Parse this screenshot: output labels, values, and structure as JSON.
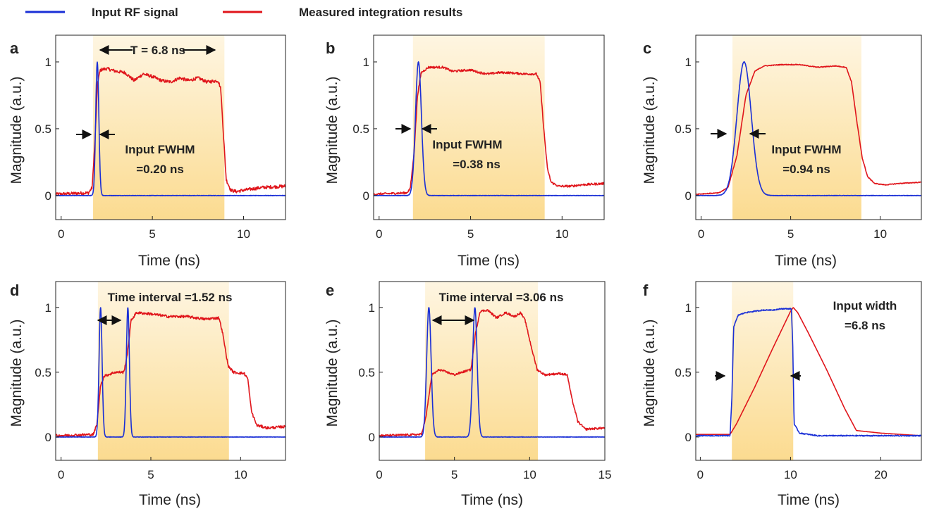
{
  "legend": [
    {
      "label": "Input RF signal",
      "color": "#1a2fd6"
    },
    {
      "label": "Measured integration results",
      "color": "#e0151b"
    }
  ],
  "colors": {
    "input": "#1a2fd6",
    "output": "#e0151b",
    "window": "#fbd98a"
  },
  "chart_data": [
    {
      "id": "a",
      "type": "line",
      "panel_label": "a",
      "xlabel": "Time (ns)",
      "ylabel": "Magnitude (a.u.)",
      "xlim": [
        -0.3,
        12.3
      ],
      "ylim": [
        -0.18,
        1.2
      ],
      "xticks": [
        0,
        5,
        10
      ],
      "xticklabels": [
        "0",
        "5",
        "10"
      ],
      "yticks": [
        0,
        0.5,
        1
      ],
      "yticklabels": [
        "0",
        "0.5",
        "1"
      ],
      "window": [
        1.75,
        8.95
      ],
      "input": {
        "kind": "pulses",
        "centers": [
          1.98
        ],
        "fwhm": 0.2,
        "end": 12.3
      },
      "output": {
        "pts": [
          [
            -0.3,
            0.01
          ],
          [
            1.5,
            0.02
          ],
          [
            1.7,
            0.06
          ],
          [
            1.85,
            0.4
          ],
          [
            2.0,
            0.85
          ],
          [
            2.15,
            0.94
          ],
          [
            2.5,
            0.95
          ],
          [
            3,
            0.93
          ],
          [
            3.5,
            0.92
          ],
          [
            4,
            0.86
          ],
          [
            4.5,
            0.91
          ],
          [
            5,
            0.89
          ],
          [
            5.5,
            0.86
          ],
          [
            6,
            0.85
          ],
          [
            6.5,
            0.88
          ],
          [
            7,
            0.86
          ],
          [
            7.5,
            0.88
          ],
          [
            8,
            0.85
          ],
          [
            8.6,
            0.86
          ],
          [
            8.75,
            0.8
          ],
          [
            8.9,
            0.45
          ],
          [
            9.05,
            0.12
          ],
          [
            9.3,
            0.04
          ],
          [
            9.6,
            0.03
          ],
          [
            10,
            0.04
          ],
          [
            11,
            0.06
          ],
          [
            12.3,
            0.07
          ]
        ],
        "noise": 0.012,
        "ann": [
          "T = 6.8 ns"
        ]
      },
      "annotations": [
        "T = 6.8 ns",
        "Input FWHM",
        "=0.20 ns"
      ]
    },
    {
      "id": "b",
      "type": "line",
      "panel_label": "b",
      "xlabel": "Time (ns)",
      "ylabel": "Magnitude (a.u.)",
      "xlim": [
        -0.3,
        12.3
      ],
      "ylim": [
        -0.18,
        1.2
      ],
      "xticks": [
        0,
        5,
        10
      ],
      "xticklabels": [
        "0",
        "5",
        "10"
      ],
      "yticks": [
        0,
        0.5,
        1
      ],
      "yticklabels": [
        "0",
        "0.5",
        "1"
      ],
      "window": [
        1.85,
        9.05
      ],
      "input": {
        "kind": "pulses",
        "centers": [
          2.15
        ],
        "fwhm": 0.38,
        "end": 12.3
      },
      "output": {
        "pts": [
          [
            -0.3,
            0.01
          ],
          [
            1.5,
            0.02
          ],
          [
            1.7,
            0.05
          ],
          [
            1.9,
            0.3
          ],
          [
            2.1,
            0.75
          ],
          [
            2.3,
            0.92
          ],
          [
            2.7,
            0.96
          ],
          [
            3.5,
            0.96
          ],
          [
            4,
            0.93
          ],
          [
            5,
            0.94
          ],
          [
            5.5,
            0.92
          ],
          [
            6,
            0.91
          ],
          [
            6.5,
            0.92
          ],
          [
            7,
            0.92
          ],
          [
            8,
            0.91
          ],
          [
            8.6,
            0.91
          ],
          [
            8.8,
            0.85
          ],
          [
            9.0,
            0.5
          ],
          [
            9.2,
            0.2
          ],
          [
            9.4,
            0.1
          ],
          [
            9.8,
            0.07
          ],
          [
            10.5,
            0.07
          ],
          [
            11,
            0.08
          ],
          [
            12.3,
            0.09
          ]
        ],
        "noise": 0.008
      },
      "annotations": [
        "Input FWHM",
        "=0.38 ns"
      ]
    },
    {
      "id": "c",
      "type": "line",
      "panel_label": "c",
      "xlabel": "Time (ns)",
      "ylabel": "Magnitude (a.u.)",
      "xlim": [
        -0.3,
        12.3
      ],
      "ylim": [
        -0.18,
        1.2
      ],
      "xticks": [
        0,
        5,
        10
      ],
      "xticklabels": [
        "0",
        "5",
        "10"
      ],
      "yticks": [
        0,
        0.5,
        1
      ],
      "yticklabels": [
        "0",
        "0.5",
        "1"
      ],
      "window": [
        1.75,
        8.95
      ],
      "input": {
        "kind": "pulses",
        "centers": [
          2.4
        ],
        "fwhm": 0.94,
        "end": 12.3
      },
      "output": {
        "pts": [
          [
            -0.3,
            0.01
          ],
          [
            1.0,
            0.02
          ],
          [
            1.5,
            0.06
          ],
          [
            2,
            0.3
          ],
          [
            2.5,
            0.75
          ],
          [
            3,
            0.93
          ],
          [
            3.5,
            0.97
          ],
          [
            4.5,
            0.98
          ],
          [
            5.5,
            0.98
          ],
          [
            6.5,
            0.96
          ],
          [
            7.5,
            0.97
          ],
          [
            8.1,
            0.96
          ],
          [
            8.4,
            0.85
          ],
          [
            8.7,
            0.55
          ],
          [
            9.0,
            0.28
          ],
          [
            9.3,
            0.14
          ],
          [
            9.7,
            0.09
          ],
          [
            10.3,
            0.08
          ],
          [
            11,
            0.09
          ],
          [
            12.3,
            0.1
          ]
        ],
        "noise": 0.003
      },
      "annotations": [
        "Input FWHM",
        "=0.94 ns"
      ]
    },
    {
      "id": "d",
      "type": "line",
      "panel_label": "d",
      "xlabel": "Time (ns)",
      "ylabel": "Magnitude (a.u.)",
      "xlim": [
        -0.3,
        12.5
      ],
      "ylim": [
        -0.18,
        1.2
      ],
      "xticks": [
        0,
        5,
        10
      ],
      "xticklabels": [
        "0",
        "5",
        "10"
      ],
      "yticks": [
        0,
        0.5,
        1
      ],
      "yticklabels": [
        "0",
        "0.5",
        "1"
      ],
      "window": [
        2.05,
        9.35
      ],
      "input": {
        "kind": "pulses",
        "centers": [
          2.2,
          3.72
        ],
        "fwhm": 0.2,
        "end": 12.5
      },
      "output": {
        "pts": [
          [
            -0.3,
            0.01
          ],
          [
            1.8,
            0.02
          ],
          [
            2.0,
            0.1
          ],
          [
            2.2,
            0.4
          ],
          [
            2.4,
            0.47
          ],
          [
            3,
            0.5
          ],
          [
            3.5,
            0.5
          ],
          [
            3.7,
            0.65
          ],
          [
            3.9,
            0.9
          ],
          [
            4.2,
            0.96
          ],
          [
            5,
            0.95
          ],
          [
            6,
            0.93
          ],
          [
            7,
            0.93
          ],
          [
            8,
            0.91
          ],
          [
            8.8,
            0.92
          ],
          [
            9.0,
            0.8
          ],
          [
            9.3,
            0.55
          ],
          [
            9.6,
            0.5
          ],
          [
            10.2,
            0.49
          ],
          [
            10.4,
            0.45
          ],
          [
            10.6,
            0.2
          ],
          [
            10.9,
            0.09
          ],
          [
            11.5,
            0.07
          ],
          [
            12.5,
            0.08
          ]
        ],
        "noise": 0.01
      },
      "annotations": [
        "Time interval =1.52 ns"
      ]
    },
    {
      "id": "e",
      "type": "line",
      "panel_label": "e",
      "xlabel": "Time (ns)",
      "ylabel": "Magnitude (a.u.)",
      "xlim": [
        0,
        15
      ],
      "ylim": [
        -0.18,
        1.2
      ],
      "xticks": [
        0,
        5,
        10,
        15
      ],
      "xticklabels": [
        "0",
        "5",
        "10",
        "15"
      ],
      "yticks": [
        0,
        0.5,
        1
      ],
      "yticklabels": [
        "0",
        "0.5",
        "1"
      ],
      "window": [
        3.05,
        10.55
      ],
      "input": {
        "kind": "pulses",
        "centers": [
          3.3,
          6.36
        ],
        "fwhm": 0.35,
        "end": 15
      },
      "output": {
        "pts": [
          [
            0,
            0.01
          ],
          [
            2.8,
            0.02
          ],
          [
            3.1,
            0.15
          ],
          [
            3.5,
            0.48
          ],
          [
            4,
            0.52
          ],
          [
            5,
            0.48
          ],
          [
            5.5,
            0.5
          ],
          [
            6.1,
            0.52
          ],
          [
            6.4,
            0.8
          ],
          [
            6.7,
            0.97
          ],
          [
            7.2,
            0.98
          ],
          [
            7.8,
            0.92
          ],
          [
            8.4,
            0.96
          ],
          [
            9,
            0.93
          ],
          [
            9.4,
            0.96
          ],
          [
            9.7,
            0.9
          ],
          [
            10.1,
            0.7
          ],
          [
            10.5,
            0.52
          ],
          [
            11,
            0.48
          ],
          [
            12,
            0.49
          ],
          [
            12.5,
            0.48
          ],
          [
            12.8,
            0.3
          ],
          [
            13.2,
            0.12
          ],
          [
            13.7,
            0.06
          ],
          [
            15,
            0.07
          ]
        ],
        "noise": 0.008
      },
      "annotations": [
        "Time interval =3.06 ns"
      ]
    },
    {
      "id": "f",
      "type": "line",
      "panel_label": "f",
      "xlabel": "Time (ns)",
      "ylabel": "Magnitude (a.u.)",
      "xlim": [
        -0.5,
        24.5
      ],
      "ylim": [
        -0.18,
        1.2
      ],
      "xticks": [
        0,
        10,
        20
      ],
      "xticklabels": [
        "0",
        "10",
        "20"
      ],
      "yticks": [
        0,
        0.5,
        1
      ],
      "yticklabels": [
        "0",
        "0.5",
        "1"
      ],
      "window": [
        3.5,
        10.3
      ],
      "input": {
        "kind": "points",
        "pts": [
          [
            -0.5,
            0.01
          ],
          [
            3.3,
            0.01
          ],
          [
            3.5,
            0.3
          ],
          [
            3.7,
            0.85
          ],
          [
            4.2,
            0.94
          ],
          [
            5,
            0.96
          ],
          [
            6,
            0.97
          ],
          [
            7,
            0.98
          ],
          [
            8,
            0.98
          ],
          [
            9,
            0.99
          ],
          [
            10.1,
            0.99
          ],
          [
            10.25,
            0.7
          ],
          [
            10.4,
            0.1
          ],
          [
            11,
            0.03
          ],
          [
            13,
            0.01
          ],
          [
            24.5,
            0.01
          ]
        ],
        "noise": 0.004
      },
      "output": {
        "pts": [
          [
            -0.5,
            0.02
          ],
          [
            3.3,
            0.02
          ],
          [
            4,
            0.1
          ],
          [
            6,
            0.38
          ],
          [
            8,
            0.68
          ],
          [
            10,
            0.97
          ],
          [
            10.3,
            1.0
          ],
          [
            10.8,
            0.96
          ],
          [
            12,
            0.8
          ],
          [
            14,
            0.52
          ],
          [
            16,
            0.22
          ],
          [
            17.3,
            0.05
          ],
          [
            20,
            0.03
          ],
          [
            24.5,
            0.01
          ]
        ],
        "noise": 0.0
      },
      "annotations": [
        "Input width",
        "=6.8 ns"
      ]
    }
  ]
}
